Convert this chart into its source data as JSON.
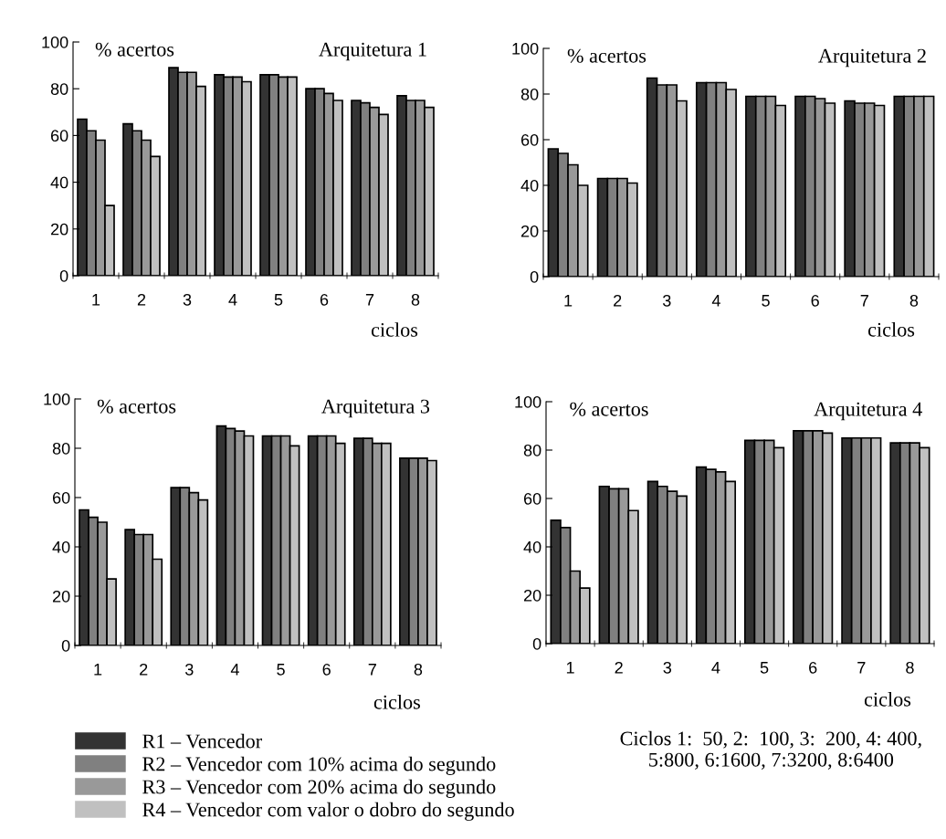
{
  "chart_data": [
    {
      "type": "bar",
      "title": "Arquitetura 1",
      "ylabel": "% acertos",
      "xlabel": "ciclos",
      "categories": [
        "1",
        "2",
        "3",
        "4",
        "5",
        "6",
        "7",
        "8"
      ],
      "ylim": [
        0,
        100
      ],
      "yticks": [
        0,
        20,
        40,
        60,
        80,
        100
      ],
      "grid": false,
      "legend": "bottom",
      "series": [
        {
          "name": "R1 – Vencedor",
          "color": "#333333",
          "values": [
            67,
            65,
            89,
            86,
            86,
            80,
            75,
            77
          ]
        },
        {
          "name": "R2 – Vencedor com 10% acima do segundo",
          "color": "#808080",
          "values": [
            62,
            62,
            87,
            85,
            86,
            80,
            74,
            75
          ]
        },
        {
          "name": "R3 – Vencedor com 20% acima do segundo",
          "color": "#999999",
          "values": [
            58,
            58,
            87,
            85,
            85,
            78,
            72,
            75
          ]
        },
        {
          "name": "R4 – Vencedor com valor o dobro do segundo",
          "color": "#c0c0c0",
          "values": [
            30,
            51,
            81,
            83,
            85,
            75,
            69,
            72
          ]
        }
      ]
    },
    {
      "type": "bar",
      "title": "Arquitetura 2",
      "ylabel": "% acertos",
      "xlabel": "ciclos",
      "categories": [
        "1",
        "2",
        "3",
        "4",
        "5",
        "6",
        "7",
        "8"
      ],
      "ylim": [
        0,
        100
      ],
      "yticks": [
        0,
        20,
        40,
        60,
        80,
        100
      ],
      "grid": false,
      "series": [
        {
          "color": "#333333",
          "values": [
            56,
            43,
            87,
            85,
            79,
            79,
            77,
            79
          ]
        },
        {
          "color": "#808080",
          "values": [
            54,
            43,
            84,
            85,
            79,
            79,
            76,
            79
          ]
        },
        {
          "color": "#999999",
          "values": [
            49,
            43,
            84,
            85,
            79,
            78,
            76,
            79
          ]
        },
        {
          "color": "#c0c0c0",
          "values": [
            40,
            41,
            77,
            82,
            75,
            76,
            75,
            79
          ]
        }
      ]
    },
    {
      "type": "bar",
      "title": "Arquitetura 3",
      "ylabel": "% acertos",
      "xlabel": "ciclos",
      "categories": [
        "1",
        "2",
        "3",
        "4",
        "5",
        "6",
        "7",
        "8"
      ],
      "ylim": [
        0,
        100
      ],
      "yticks": [
        0,
        20,
        40,
        60,
        80,
        100
      ],
      "grid": false,
      "series": [
        {
          "color": "#333333",
          "values": [
            55,
            47,
            64,
            89,
            85,
            85,
            84,
            76
          ]
        },
        {
          "color": "#808080",
          "values": [
            52,
            45,
            64,
            88,
            85,
            85,
            84,
            76
          ]
        },
        {
          "color": "#999999",
          "values": [
            50,
            45,
            62,
            87,
            85,
            85,
            82,
            76
          ]
        },
        {
          "color": "#c0c0c0",
          "values": [
            27,
            35,
            59,
            85,
            81,
            82,
            82,
            75
          ]
        }
      ]
    },
    {
      "type": "bar",
      "title": "Arquitetura 4",
      "ylabel": "% acertos",
      "xlabel": "ciclos",
      "categories": [
        "1",
        "2",
        "3",
        "4",
        "5",
        "6",
        "7",
        "8"
      ],
      "ylim": [
        0,
        100
      ],
      "yticks": [
        0,
        20,
        40,
        60,
        80,
        100
      ],
      "grid": false,
      "annotations": [
        "Ciclos 1:  50, 2:  100, 3:  200, 4: 400,\n5:800, 6:1600, 7:3200, 8:6400"
      ],
      "series": [
        {
          "color": "#333333",
          "values": [
            51,
            65,
            67,
            73,
            84,
            88,
            85,
            83
          ]
        },
        {
          "color": "#808080",
          "values": [
            48,
            64,
            65,
            72,
            84,
            88,
            85,
            83
          ]
        },
        {
          "color": "#999999",
          "values": [
            30,
            64,
            63,
            71,
            84,
            88,
            85,
            83
          ]
        },
        {
          "color": "#c0c0c0",
          "values": [
            23,
            55,
            61,
            67,
            81,
            87,
            85,
            81
          ]
        }
      ]
    }
  ]
}
